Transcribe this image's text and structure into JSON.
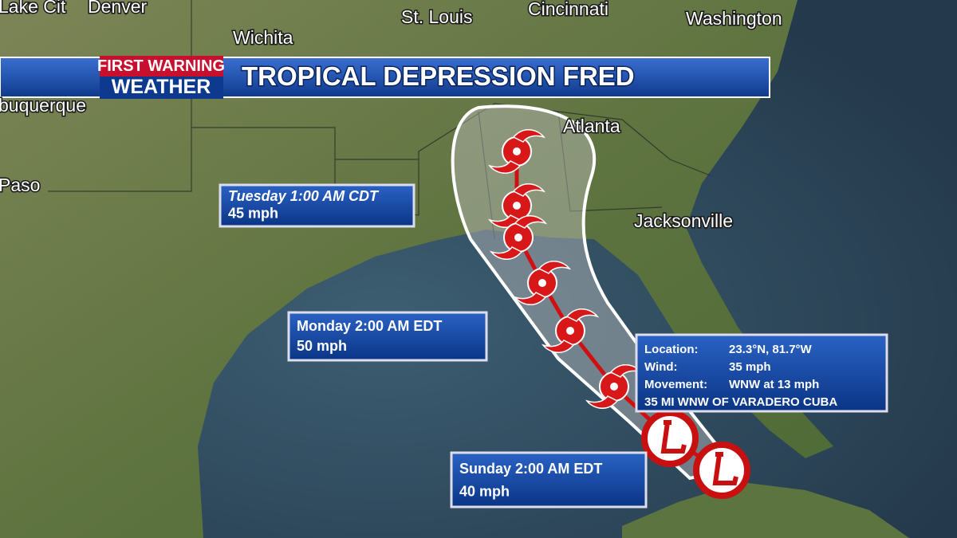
{
  "header": {
    "badge_top": "FIRST WARNING",
    "badge_bottom": "WEATHER",
    "title": "TROPICAL DEPRESSION FRED"
  },
  "cities": [
    {
      "label": "Lake Cit"
    },
    {
      "label": "Denver"
    },
    {
      "label": "Wichita"
    },
    {
      "label": "St. Louis"
    },
    {
      "label": "Cincinnati"
    },
    {
      "label": "Washington"
    },
    {
      "label": "buquerque"
    },
    {
      "label": "Paso"
    },
    {
      "label": "Atlanta"
    },
    {
      "label": "Jacksonville"
    }
  ],
  "forecasts": [
    {
      "time": "Tuesday 1:00 AM CDT",
      "wind": "45 mph"
    },
    {
      "time": "Monday 2:00 AM EDT",
      "wind": "50 mph"
    },
    {
      "time": "Sunday 2:00 AM EDT",
      "wind": "40 mph"
    }
  ],
  "info": {
    "rows": [
      {
        "label": "Location:",
        "value": "23.3°N, 81.7°W"
      },
      {
        "label": "Wind:",
        "value": "35 mph"
      },
      {
        "label": "Movement:",
        "value": "WNW at 13 mph"
      }
    ],
    "note": "35 MI WNW OF VARADERO CUBA"
  }
}
